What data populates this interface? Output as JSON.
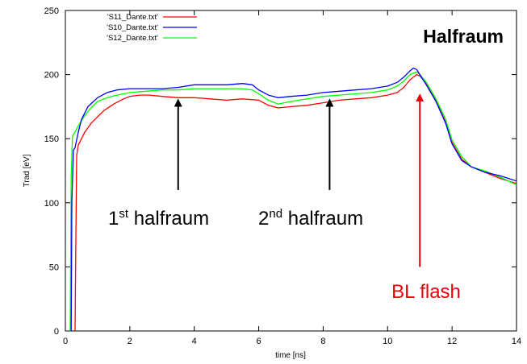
{
  "chart_data": {
    "type": "line",
    "title": "Halfraum",
    "xlabel": "time [ns]",
    "ylabel": "Trad [eV]",
    "xlim": [
      0,
      14
    ],
    "ylim": [
      0,
      250
    ],
    "xticks": [
      0,
      2,
      4,
      6,
      8,
      10,
      12,
      14
    ],
    "yticks": [
      0,
      50,
      100,
      150,
      200,
      250
    ],
    "grid": false,
    "legend": "top-left",
    "series": [
      {
        "name": "'S11_Dante.txt'",
        "color": "#ff0000",
        "x": [
          0.3,
          0.32,
          0.35,
          0.4,
          0.5,
          0.6,
          0.8,
          1.0,
          1.2,
          1.5,
          1.8,
          2.0,
          2.3,
          2.6,
          3.0,
          3.5,
          4.0,
          4.5,
          5.0,
          5.5,
          6.0,
          6.3,
          6.6,
          7.0,
          7.5,
          8.0,
          8.5,
          9.0,
          9.5,
          10.0,
          10.3,
          10.5,
          10.7,
          10.9,
          11.0,
          11.2,
          11.5,
          11.8,
          12.0,
          12.3,
          12.6,
          13.0,
          13.5,
          14.0
        ],
        "y": [
          0,
          60,
          137,
          145,
          150,
          155,
          162,
          167,
          172,
          177,
          181,
          183,
          184,
          184,
          183,
          182,
          182,
          181,
          180,
          181,
          180,
          176,
          174,
          175,
          176,
          178,
          180,
          181,
          182,
          184,
          186,
          190,
          196,
          200,
          199,
          193,
          180,
          163,
          147,
          134,
          128,
          124,
          119,
          115
        ]
      },
      {
        "name": "'S10_Dante.txt'",
        "color": "#0000ff",
        "x": [
          0.18,
          0.2,
          0.25,
          0.3,
          0.4,
          0.5,
          0.7,
          1.0,
          1.3,
          1.6,
          2.0,
          2.5,
          3.0,
          3.5,
          4.0,
          4.5,
          5.0,
          5.5,
          5.8,
          6.0,
          6.3,
          6.6,
          7.0,
          7.5,
          8.0,
          8.5,
          9.0,
          9.5,
          10.0,
          10.3,
          10.5,
          10.7,
          10.8,
          10.9,
          11.0,
          11.2,
          11.5,
          11.8,
          12.0,
          12.3,
          12.6,
          13.0,
          13.5,
          14.0
        ],
        "y": [
          0,
          100,
          141,
          143,
          155,
          165,
          175,
          182,
          186,
          188,
          189,
          189,
          189,
          190,
          192,
          192,
          192,
          193,
          192,
          188,
          184,
          182,
          183,
          184,
          186,
          187,
          188,
          189,
          191,
          194,
          198,
          203,
          205,
          204,
          200,
          192,
          179,
          162,
          146,
          133,
          128,
          124,
          121,
          117
        ]
      },
      {
        "name": "'S12_Dante.txt'",
        "color": "#00ff00",
        "x": [
          0.15,
          0.18,
          0.22,
          0.3,
          0.4,
          0.6,
          0.8,
          1.0,
          1.3,
          1.6,
          2.0,
          2.5,
          3.0,
          3.5,
          4.0,
          4.5,
          5.0,
          5.5,
          5.8,
          6.0,
          6.3,
          6.6,
          7.0,
          7.5,
          8.0,
          8.5,
          9.0,
          9.5,
          10.0,
          10.3,
          10.5,
          10.7,
          10.9,
          11.0,
          11.2,
          11.5,
          11.8,
          12.0,
          12.3,
          12.6,
          13.0,
          13.5,
          14.0
        ],
        "y": [
          0,
          120,
          152,
          155,
          160,
          168,
          174,
          179,
          182,
          184,
          186,
          187,
          188,
          188,
          189,
          189,
          189,
          189,
          188,
          185,
          180,
          177,
          179,
          181,
          183,
          184,
          185,
          186,
          188,
          191,
          195,
          200,
          202,
          200,
          194,
          181,
          165,
          149,
          136,
          128,
          125,
          120,
          114
        ]
      }
    ],
    "annotations": {
      "first_halfraum": {
        "prefix": "1",
        "sup": "st",
        "suffix": " halfraum",
        "arrow_x": 3.5,
        "arrow_from_y": 110,
        "arrow_to_y": 180,
        "color": "#000000"
      },
      "second_halfraum": {
        "prefix": "2",
        "sup": "nd",
        "suffix": " halfraum",
        "arrow_x": 8.2,
        "arrow_from_y": 110,
        "arrow_to_y": 180,
        "color": "#000000"
      },
      "bl_flash": {
        "text": "BL flash",
        "arrow_x": 11.0,
        "arrow_from_y": 50,
        "arrow_to_y": 184,
        "color": "#e8000b"
      }
    }
  }
}
